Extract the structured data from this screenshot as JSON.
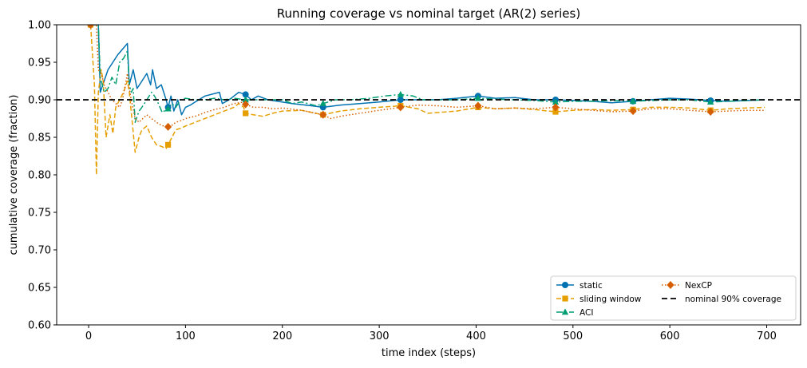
{
  "chart_data": {
    "type": "line",
    "title": "Running coverage vs nominal target (AR(2) series)",
    "xlabel": "time index (steps)",
    "ylabel": "cumulative coverage (fraction)",
    "xlim": [
      -33,
      735
    ],
    "ylim": [
      0.6,
      1.0
    ],
    "xticks": [
      0,
      100,
      200,
      300,
      400,
      500,
      600,
      700
    ],
    "yticks": [
      0.6,
      0.65,
      0.7,
      0.75,
      0.8,
      0.85,
      0.9,
      0.95,
      1.0
    ],
    "ytick_labels": [
      "0.60",
      "0.65",
      "0.70",
      "0.75",
      "0.80",
      "0.85",
      "0.90",
      "0.95",
      "1.00"
    ],
    "grid": false,
    "legend_position": "lower-right",
    "reference_line": {
      "label": "nominal 90% coverage",
      "y": 0.9,
      "color": "#000000"
    },
    "series": [
      {
        "name": "static",
        "color": "#0072B2",
        "linestyle": "solid",
        "marker": "circle",
        "points": [
          [
            2,
            1.0
          ],
          [
            10,
            1.0
          ],
          [
            12,
            0.91
          ],
          [
            20,
            0.94
          ],
          [
            30,
            0.96
          ],
          [
            40,
            0.975
          ],
          [
            42,
            0.92
          ],
          [
            46,
            0.94
          ],
          [
            50,
            0.915
          ],
          [
            55,
            0.925
          ],
          [
            60,
            0.935
          ],
          [
            64,
            0.92
          ],
          [
            66,
            0.94
          ],
          [
            70,
            0.915
          ],
          [
            75,
            0.92
          ],
          [
            80,
            0.9
          ],
          [
            82,
            0.89
          ],
          [
            85,
            0.905
          ],
          [
            88,
            0.885
          ],
          [
            92,
            0.9
          ],
          [
            96,
            0.88
          ],
          [
            100,
            0.89
          ],
          [
            105,
            0.893
          ],
          [
            110,
            0.897
          ],
          [
            120,
            0.905
          ],
          [
            135,
            0.91
          ],
          [
            138,
            0.895
          ],
          [
            145,
            0.9
          ],
          [
            150,
            0.905
          ],
          [
            155,
            0.91
          ],
          [
            162,
            0.907
          ],
          [
            168,
            0.9
          ],
          [
            175,
            0.905
          ],
          [
            185,
            0.9
          ],
          [
            195,
            0.898
          ],
          [
            210,
            0.895
          ],
          [
            230,
            0.892
          ],
          [
            242,
            0.89
          ],
          [
            260,
            0.893
          ],
          [
            280,
            0.895
          ],
          [
            300,
            0.897
          ],
          [
            322,
            0.9
          ],
          [
            340,
            0.9
          ],
          [
            360,
            0.9
          ],
          [
            380,
            0.902
          ],
          [
            402,
            0.905
          ],
          [
            420,
            0.902
          ],
          [
            440,
            0.903
          ],
          [
            460,
            0.9
          ],
          [
            482,
            0.9
          ],
          [
            500,
            0.899
          ],
          [
            520,
            0.898
          ],
          [
            540,
            0.896
          ],
          [
            562,
            0.898
          ],
          [
            580,
            0.9
          ],
          [
            600,
            0.902
          ],
          [
            620,
            0.901
          ],
          [
            642,
            0.899
          ],
          [
            660,
            0.898
          ],
          [
            680,
            0.899
          ],
          [
            698,
            0.9
          ]
        ],
        "marker_x": [
          2,
          82,
          162,
          242,
          322,
          402,
          482,
          562,
          642
        ]
      },
      {
        "name": "sliding window",
        "color": "#E69F00",
        "linestyle": "dashed",
        "marker": "square",
        "points": [
          [
            2,
            1.0
          ],
          [
            6,
            0.92
          ],
          [
            8,
            0.8
          ],
          [
            10,
            0.91
          ],
          [
            13,
            0.94
          ],
          [
            15,
            0.925
          ],
          [
            18,
            0.85
          ],
          [
            22,
            0.88
          ],
          [
            25,
            0.855
          ],
          [
            28,
            0.89
          ],
          [
            32,
            0.9
          ],
          [
            36,
            0.91
          ],
          [
            40,
            0.925
          ],
          [
            42,
            0.91
          ],
          [
            45,
            0.87
          ],
          [
            48,
            0.83
          ],
          [
            52,
            0.85
          ],
          [
            55,
            0.86
          ],
          [
            60,
            0.865
          ],
          [
            65,
            0.85
          ],
          [
            70,
            0.84
          ],
          [
            75,
            0.838
          ],
          [
            80,
            0.835
          ],
          [
            82,
            0.84
          ],
          [
            86,
            0.85
          ],
          [
            90,
            0.86
          ],
          [
            95,
            0.862
          ],
          [
            100,
            0.865
          ],
          [
            110,
            0.87
          ],
          [
            120,
            0.875
          ],
          [
            130,
            0.88
          ],
          [
            140,
            0.885
          ],
          [
            150,
            0.89
          ],
          [
            155,
            0.895
          ],
          [
            160,
            0.89
          ],
          [
            162,
            0.882
          ],
          [
            170,
            0.88
          ],
          [
            180,
            0.878
          ],
          [
            190,
            0.882
          ],
          [
            200,
            0.885
          ],
          [
            220,
            0.886
          ],
          [
            242,
            0.88
          ],
          [
            260,
            0.885
          ],
          [
            280,
            0.888
          ],
          [
            300,
            0.89
          ],
          [
            322,
            0.892
          ],
          [
            340,
            0.888
          ],
          [
            350,
            0.882
          ],
          [
            360,
            0.883
          ],
          [
            380,
            0.885
          ],
          [
            402,
            0.89
          ],
          [
            420,
            0.888
          ],
          [
            440,
            0.889
          ],
          [
            460,
            0.887
          ],
          [
            482,
            0.884
          ],
          [
            500,
            0.886
          ],
          [
            520,
            0.887
          ],
          [
            540,
            0.886
          ],
          [
            562,
            0.887
          ],
          [
            580,
            0.89
          ],
          [
            600,
            0.89
          ],
          [
            620,
            0.889
          ],
          [
            642,
            0.886
          ],
          [
            660,
            0.888
          ],
          [
            680,
            0.889
          ],
          [
            698,
            0.89
          ]
        ],
        "marker_x": [
          2,
          82,
          162,
          242,
          322,
          402,
          482,
          562,
          642
        ]
      },
      {
        "name": "ACI",
        "color": "#009E73",
        "linestyle": "dashdot",
        "marker": "triangle",
        "points": [
          [
            2,
            1.0
          ],
          [
            10,
            1.0
          ],
          [
            12,
            0.93
          ],
          [
            16,
            0.91
          ],
          [
            20,
            0.915
          ],
          [
            24,
            0.93
          ],
          [
            28,
            0.92
          ],
          [
            30,
            0.935
          ],
          [
            32,
            0.95
          ],
          [
            36,
            0.955
          ],
          [
            40,
            0.965
          ],
          [
            42,
            0.92
          ],
          [
            44,
            0.91
          ],
          [
            46,
            0.915
          ],
          [
            48,
            0.87
          ],
          [
            52,
            0.885
          ],
          [
            55,
            0.89
          ],
          [
            60,
            0.9
          ],
          [
            65,
            0.91
          ],
          [
            68,
            0.905
          ],
          [
            72,
            0.895
          ],
          [
            76,
            0.883
          ],
          [
            80,
            0.887
          ],
          [
            82,
            0.888
          ],
          [
            86,
            0.895
          ],
          [
            90,
            0.89
          ],
          [
            95,
            0.9
          ],
          [
            100,
            0.902
          ],
          [
            110,
            0.9
          ],
          [
            120,
            0.9
          ],
          [
            130,
            0.902
          ],
          [
            140,
            0.9
          ],
          [
            150,
            0.902
          ],
          [
            162,
            0.9
          ],
          [
            170,
            0.9
          ],
          [
            180,
            0.9
          ],
          [
            190,
            0.9
          ],
          [
            200,
            0.9
          ],
          [
            210,
            0.895
          ],
          [
            220,
            0.897
          ],
          [
            235,
            0.892
          ],
          [
            242,
            0.895
          ],
          [
            255,
            0.9
          ],
          [
            270,
            0.9
          ],
          [
            290,
            0.902
          ],
          [
            305,
            0.905
          ],
          [
            322,
            0.907
          ],
          [
            335,
            0.905
          ],
          [
            345,
            0.9
          ],
          [
            360,
            0.9
          ],
          [
            380,
            0.9
          ],
          [
            402,
            0.902
          ],
          [
            420,
            0.901
          ],
          [
            440,
            0.9
          ],
          [
            460,
            0.899
          ],
          [
            482,
            0.897
          ],
          [
            500,
            0.898
          ],
          [
            520,
            0.898
          ],
          [
            540,
            0.899
          ],
          [
            562,
            0.898
          ],
          [
            580,
            0.899
          ],
          [
            600,
            0.9
          ],
          [
            620,
            0.9
          ],
          [
            642,
            0.897
          ],
          [
            660,
            0.898
          ],
          [
            680,
            0.899
          ],
          [
            698,
            0.9
          ]
        ],
        "marker_x": [
          82,
          162,
          242,
          322,
          402,
          482,
          562,
          642
        ]
      },
      {
        "name": "NexCP",
        "color": "#D55E00",
        "linestyle": "dotted",
        "marker": "diamond",
        "points": [
          [
            2,
            1.0
          ],
          [
            8,
            1.0
          ],
          [
            10,
            0.94
          ],
          [
            13,
            0.935
          ],
          [
            16,
            0.92
          ],
          [
            20,
            0.91
          ],
          [
            24,
            0.9
          ],
          [
            28,
            0.895
          ],
          [
            32,
            0.89
          ],
          [
            35,
            0.9
          ],
          [
            40,
            0.935
          ],
          [
            42,
            0.915
          ],
          [
            44,
            0.9
          ],
          [
            48,
            0.875
          ],
          [
            52,
            0.87
          ],
          [
            56,
            0.875
          ],
          [
            60,
            0.88
          ],
          [
            65,
            0.875
          ],
          [
            70,
            0.87
          ],
          [
            75,
            0.866
          ],
          [
            80,
            0.864
          ],
          [
            82,
            0.864
          ],
          [
            86,
            0.866
          ],
          [
            90,
            0.87
          ],
          [
            95,
            0.872
          ],
          [
            100,
            0.875
          ],
          [
            110,
            0.878
          ],
          [
            120,
            0.883
          ],
          [
            130,
            0.887
          ],
          [
            140,
            0.89
          ],
          [
            150,
            0.895
          ],
          [
            160,
            0.897
          ],
          [
            162,
            0.894
          ],
          [
            170,
            0.89
          ],
          [
            180,
            0.89
          ],
          [
            190,
            0.888
          ],
          [
            200,
            0.889
          ],
          [
            220,
            0.886
          ],
          [
            242,
            0.88
          ],
          [
            250,
            0.875
          ],
          [
            260,
            0.878
          ],
          [
            280,
            0.882
          ],
          [
            300,
            0.886
          ],
          [
            322,
            0.89
          ],
          [
            340,
            0.893
          ],
          [
            360,
            0.892
          ],
          [
            380,
            0.89
          ],
          [
            402,
            0.892
          ],
          [
            420,
            0.888
          ],
          [
            440,
            0.889
          ],
          [
            460,
            0.888
          ],
          [
            482,
            0.89
          ],
          [
            500,
            0.888
          ],
          [
            520,
            0.886
          ],
          [
            540,
            0.884
          ],
          [
            562,
            0.885
          ],
          [
            580,
            0.888
          ],
          [
            600,
            0.888
          ],
          [
            620,
            0.886
          ],
          [
            642,
            0.884
          ],
          [
            660,
            0.885
          ],
          [
            680,
            0.886
          ],
          [
            698,
            0.886
          ]
        ],
        "marker_x": [
          2,
          82,
          162,
          242,
          322,
          402,
          482,
          562,
          642
        ]
      }
    ]
  }
}
